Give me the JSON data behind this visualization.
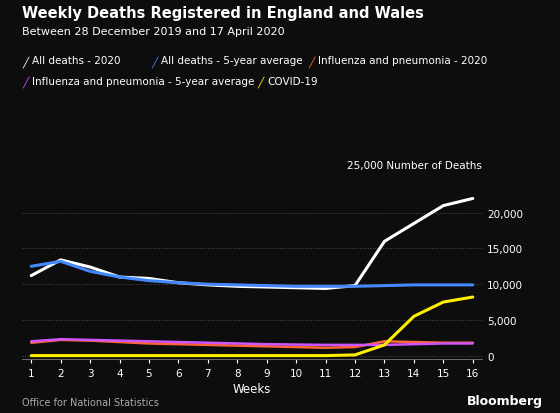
{
  "title": "Weekly Deaths Registered in England and Wales",
  "subtitle": "Between 28 December 2019 and 17 April 2020",
  "source": "Office for National Statistics",
  "watermark": "Bloomberg",
  "xlabel": "Weeks",
  "ylabel": "25,000 Number of Deaths",
  "background_color": "#0d0d0d",
  "text_color": "#ffffff",
  "weeks": [
    1,
    2,
    3,
    4,
    5,
    6,
    7,
    8,
    9,
    10,
    11,
    12,
    13,
    14,
    15,
    16
  ],
  "all_deaths_2020": [
    11200,
    13400,
    12400,
    11000,
    10800,
    10200,
    9900,
    9700,
    9600,
    9500,
    9400,
    9800,
    16000,
    18500,
    21000,
    22000
  ],
  "all_deaths_5yr": [
    12500,
    13200,
    11800,
    11000,
    10500,
    10200,
    10000,
    9900,
    9800,
    9700,
    9700,
    9700,
    9800,
    9900,
    9900,
    9900
  ],
  "influenza_2020": [
    1800,
    2200,
    2100,
    1900,
    1700,
    1600,
    1500,
    1400,
    1300,
    1200,
    1100,
    1200,
    2000,
    1900,
    1800,
    1800
  ],
  "influenza_5yr": [
    2000,
    2300,
    2200,
    2100,
    2000,
    1900,
    1800,
    1700,
    1600,
    1550,
    1500,
    1500,
    1500,
    1600,
    1700,
    1700
  ],
  "covid19": [
    0,
    0,
    0,
    0,
    0,
    0,
    0,
    0,
    0,
    0,
    0,
    100,
    1500,
    5500,
    7500,
    8200
  ],
  "ylim": [
    -500,
    25000
  ],
  "yticks": [
    0,
    5000,
    10000,
    15000,
    20000
  ],
  "line_colors": {
    "all_deaths_2020": "#ffffff",
    "all_deaths_5yr": "#4488ff",
    "influenza_2020": "#ff6633",
    "influenza_5yr": "#cc55ff",
    "covid19": "#ffee00"
  },
  "line_widths": {
    "all_deaths_2020": 2.2,
    "all_deaths_5yr": 2.2,
    "influenza_2020": 1.8,
    "influenza_5yr": 1.8,
    "covid19": 2.2
  },
  "legend_labels": [
    "All deaths - 2020",
    "All deaths - 5-year average",
    "Influenza and pneumonia - 2020",
    "Influenza and pneumonia - 5-year average",
    "COVID-19"
  ]
}
